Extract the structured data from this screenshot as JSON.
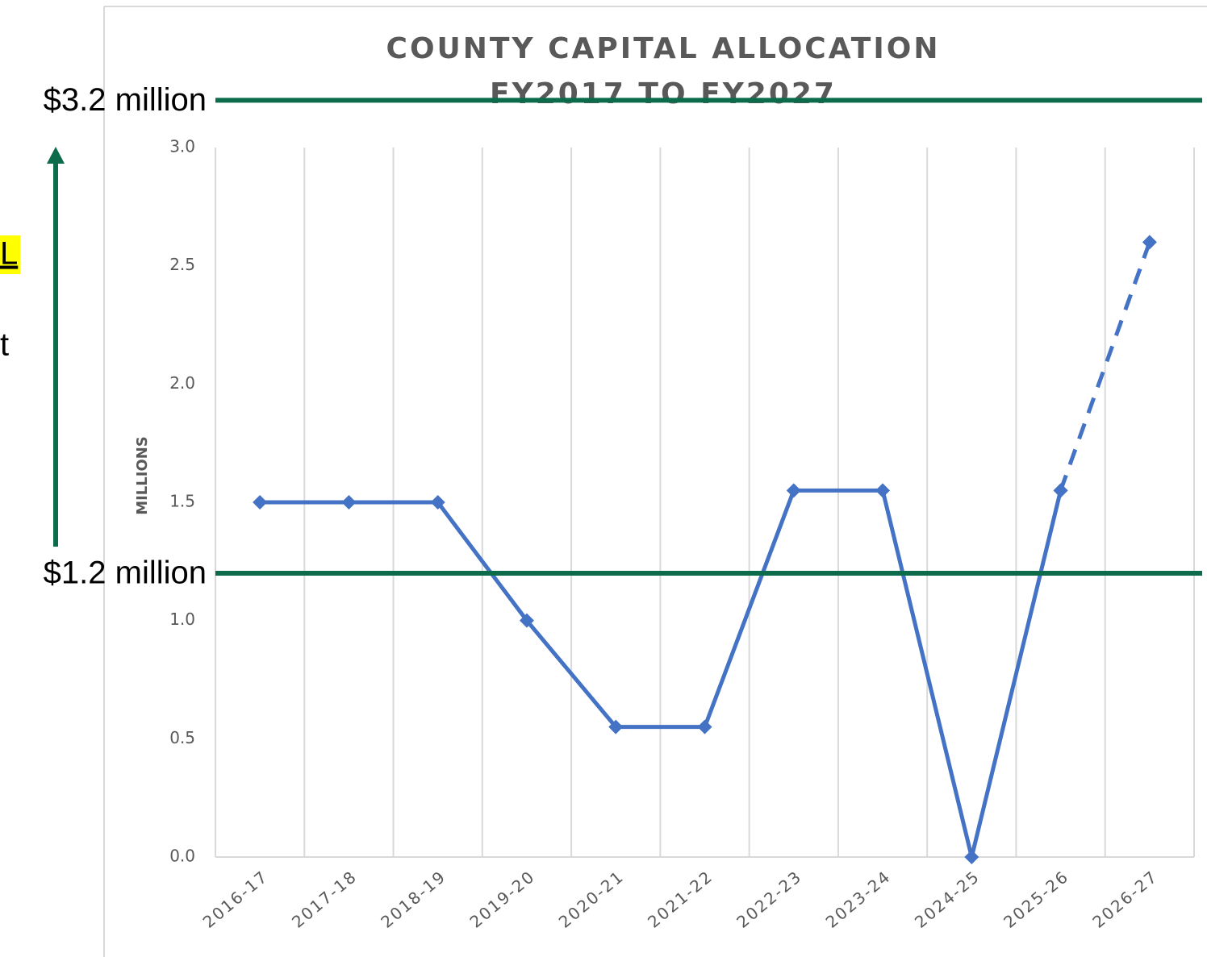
{
  "chart_data": {
    "type": "line",
    "title": [
      "COUNTY CAPITAL ALLOCATION",
      "FY2017 TO FY2027"
    ],
    "y_label": "MILLIONS",
    "categories": [
      "2016-17",
      "2017-18",
      "2018-19",
      "2019-20",
      "2020-21",
      "2021-22",
      "2022-23",
      "2023-24",
      "2024-25",
      "2025-26",
      "2026-27"
    ],
    "series": [
      {
        "color": "#4472c4",
        "line_style": "solid",
        "values": [
          1.5,
          1.5,
          1.5,
          1.0,
          0.55,
          0.55,
          1.55,
          1.55,
          0,
          1.55,
          null
        ]
      },
      {
        "color": "#4472c4",
        "line_style": "dashed",
        "values": [
          null,
          null,
          null,
          null,
          null,
          null,
          null,
          null,
          null,
          1.55,
          2.6
        ]
      }
    ],
    "ylim": [
      0,
      3.0
    ],
    "yticks": [
      {
        "value": 0,
        "label": "0.0"
      },
      {
        "value": 0.5,
        "label": "0.5"
      },
      {
        "value": 1,
        "label": "1.0"
      },
      {
        "value": 1.5,
        "label": "1.5"
      },
      {
        "value": 2,
        "label": "2.0"
      },
      {
        "value": 2.5,
        "label": "2.5"
      },
      {
        "value": 3,
        "label": "3.0"
      }
    ],
    "grid": "vertical",
    "reference_lines": [
      {
        "label": "$3.2 million",
        "value": 3.2,
        "color": "#0b6b4a"
      },
      {
        "label": "$1.2 million",
        "value": 1.2,
        "color": "#0b6b4a"
      }
    ],
    "left_fragments": [
      "L",
      "t"
    ]
  }
}
